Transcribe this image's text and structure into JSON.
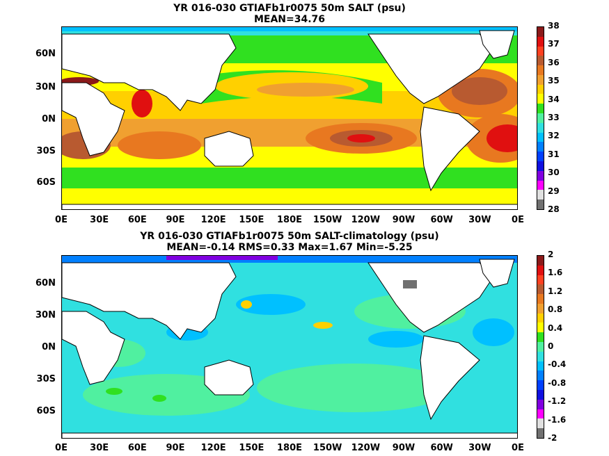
{
  "top": {
    "title": "YR 016-030 GTIAFb1r0075 50m SALT (psu)",
    "subtitle": "MEAN=34.76",
    "colorbar": {
      "labels": [
        "38",
        "37",
        "36",
        "35",
        "34",
        "33",
        "32",
        "31",
        "30",
        "29",
        "28"
      ],
      "colors": [
        "#8b1a1a",
        "#e01010",
        "#ff4020",
        "#b85a30",
        "#e87820",
        "#f0a030",
        "#ffd000",
        "#ffff00",
        "#30e020",
        "#50f0a0",
        "#30e0e0",
        "#00c0ff",
        "#0080ff",
        "#0040ff",
        "#1010e0",
        "#8000e0",
        "#ff00ff",
        "#e0e0e0",
        "#707070"
      ]
    }
  },
  "bottom": {
    "title": "YR 016-030 GTIAFb1r0075 50m SALT-climatology (psu)",
    "subtitle": "MEAN=-0.14   RMS=0.33   Max=1.67   Min=-5.25",
    "colorbar": {
      "labels": [
        "2",
        "1.6",
        "1.2",
        "0.8",
        "0.4",
        "0",
        "-0.4",
        "-0.8",
        "-1.2",
        "-1.6",
        "-2"
      ],
      "colors": [
        "#8b1a1a",
        "#e01010",
        "#ff4020",
        "#b85a30",
        "#e87820",
        "#f0a030",
        "#ffd000",
        "#ffff00",
        "#30e020",
        "#50f0a0",
        "#30e0e0",
        "#00c0ff",
        "#0080ff",
        "#0040ff",
        "#1010e0",
        "#8000e0",
        "#ff00ff",
        "#e0e0e0",
        "#707070"
      ]
    }
  },
  "axes": {
    "y_labels": [
      "60N",
      "30N",
      "0N",
      "30S",
      "60S"
    ],
    "x_labels": [
      "0E",
      "30E",
      "60E",
      "90E",
      "120E",
      "150E",
      "180E",
      "150W",
      "120W",
      "90W",
      "60W",
      "30W",
      "0E"
    ]
  },
  "colors": {
    "land": "#ffffff",
    "coast": "#000000"
  }
}
